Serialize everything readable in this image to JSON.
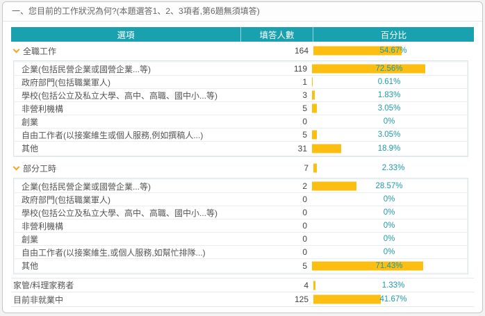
{
  "title": "一、您目前的工作狀況為何?(本題選答1、2、3項者,第6題無須填答)",
  "table": {
    "headers": [
      "選項",
      "填答人數",
      "百分比"
    ],
    "groups": [
      {
        "label": "全職工作",
        "count": 164,
        "percent": "54.67%",
        "percent_value": 54.67,
        "children": [
          {
            "label": "企業(包括民營企業或國營企業...等)",
            "count": 119,
            "percent": "72.56%",
            "percent_value": 72.56
          },
          {
            "label": "政府部門(包括職業軍人)",
            "count": 1,
            "percent": "0.61%",
            "percent_value": 0.61
          },
          {
            "label": "學校(包括公立及私立大學、高中、高職、國中小...等)",
            "count": 3,
            "percent": "1.83%",
            "percent_value": 1.83
          },
          {
            "label": "非營利機構",
            "count": 5,
            "percent": "3.05%",
            "percent_value": 3.05
          },
          {
            "label": "創業",
            "count": 0,
            "percent": "0%",
            "percent_value": 0
          },
          {
            "label": "自由工作者(以接案維生或個人服務,例如撰稿人...)",
            "count": 5,
            "percent": "3.05%",
            "percent_value": 3.05
          },
          {
            "label": "其他",
            "count": 31,
            "percent": "18.9%",
            "percent_value": 18.9
          }
        ]
      },
      {
        "label": "部分工時",
        "count": 7,
        "percent": "2.33%",
        "percent_value": 2.33,
        "children": [
          {
            "label": "企業(包括民營企業或國營企業...等)",
            "count": 2,
            "percent": "28.57%",
            "percent_value": 28.57
          },
          {
            "label": "政府部門(包括職業軍人)",
            "count": 0,
            "percent": "0%",
            "percent_value": 0
          },
          {
            "label": "學校(包括公立及私立大學、高中、高職、國中小...等)",
            "count": 0,
            "percent": "0%",
            "percent_value": 0
          },
          {
            "label": "非營利機構",
            "count": 0,
            "percent": "0%",
            "percent_value": 0
          },
          {
            "label": "創業",
            "count": 0,
            "percent": "0%",
            "percent_value": 0
          },
          {
            "label": "自由工作者(以接案維生,或個人服務,如幫忙排隊...)",
            "count": 0,
            "percent": "0%",
            "percent_value": 0
          },
          {
            "label": "其他",
            "count": 5,
            "percent": "71.43%",
            "percent_value": 71.43
          }
        ]
      },
      {
        "label": "家管/料理家務者",
        "count": 4,
        "percent": "1.33%",
        "percent_value": 1.33
      },
      {
        "label": "目前非就業中",
        "count": 125,
        "percent": "41.67%",
        "percent_value": 41.67
      }
    ]
  },
  "colors": {
    "header_bg": "#1aa1af",
    "bar": "#fdbe12",
    "percent_text": "#1d9aa8",
    "chevron": "#f7a41d"
  }
}
